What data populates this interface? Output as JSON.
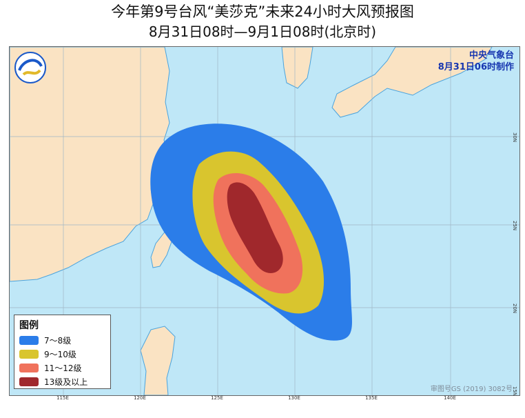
{
  "title": {
    "line1": "今年第9号台风“美莎克”未来24小时大风预报图",
    "line2": "8月31日08时—9月1日08时(北京时)"
  },
  "agency": {
    "name": "中央气象台",
    "issued": "8月31日06时制作"
  },
  "legend": {
    "title": "图例",
    "items": [
      {
        "label": "7～8级",
        "color": "#2b7de9"
      },
      {
        "label": "9～10级",
        "color": "#d9c52e"
      },
      {
        "label": "11～12级",
        "color": "#f0725c"
      },
      {
        "label": "13级及以上",
        "color": "#a0282c"
      }
    ]
  },
  "axes": {
    "longitude_labels": [
      "115E",
      "120E",
      "125E",
      "130E",
      "135E",
      "140E"
    ],
    "latitude_labels": [
      "30N",
      "25N",
      "20N",
      "15N"
    ]
  },
  "colors": {
    "sea": "#bfe7f7",
    "land": "#fae3c3",
    "border": "#4aa3dd"
  },
  "watermark": "审图号GS (2019) 3082号"
}
